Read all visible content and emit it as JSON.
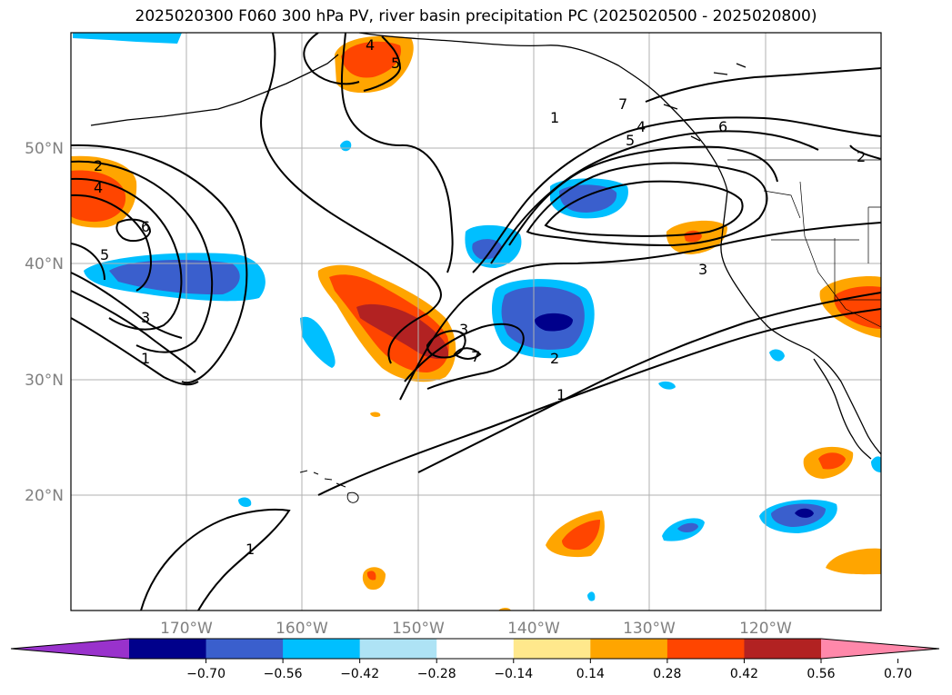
{
  "title": "2025020300 F060 300 hPa PV, river basin precipitation PC (2025020500 - 2025020800)",
  "map": {
    "projection": "PlateCarree",
    "lon_range": [
      -180,
      -110
    ],
    "lat_range": [
      10,
      60
    ],
    "gridlines": true,
    "lat_labels": [
      "50°N",
      "40°N",
      "30°N",
      "20°N"
    ],
    "lon_labels": [
      "170°W",
      "160°W",
      "150°W",
      "140°W",
      "130°W",
      "120°W"
    ],
    "colors": {
      "coastline": "#000000",
      "grid": "#b0b0b0",
      "label": "#808080"
    }
  },
  "pv_contour_labels": [
    "1",
    "1",
    "1",
    "1",
    "2",
    "2",
    "2",
    "3",
    "3",
    "3",
    "4",
    "4",
    "4",
    "5",
    "5",
    "5",
    "6",
    "6",
    "7",
    "7"
  ],
  "colorbar": {
    "ticks": [
      "−0.70",
      "−0.56",
      "−0.42",
      "−0.28",
      "−0.14",
      "0.14",
      "0.28",
      "0.42",
      "0.56",
      "0.70"
    ],
    "colors": [
      "#9932cc",
      "#00008b",
      "#3a5fcd",
      "#00bfff",
      "#aee3f5",
      "#ffffff",
      "#ffe88c",
      "#ffa500",
      "#ff4500",
      "#b22222",
      "#ff88aa"
    ],
    "extend": "both"
  }
}
